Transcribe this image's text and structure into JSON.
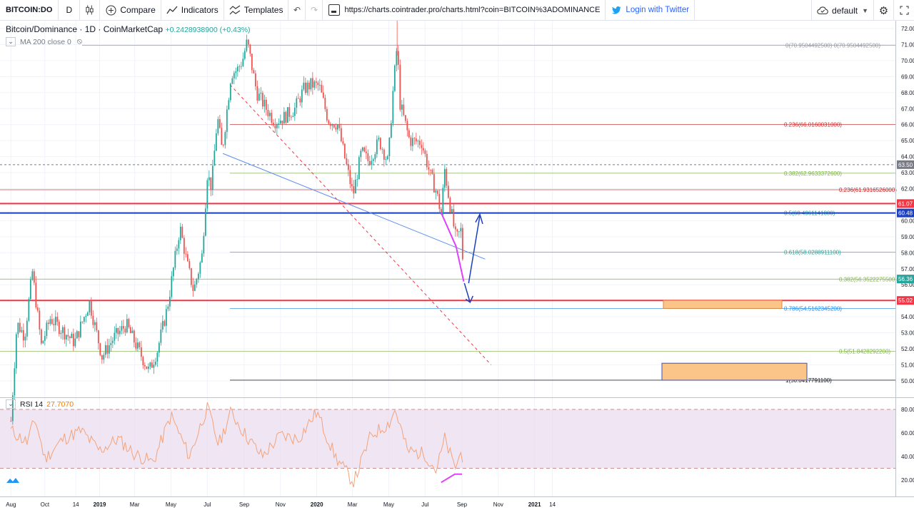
{
  "toolbar": {
    "symbol": "BITCOIN:DO",
    "interval": "D",
    "compare_label": "Compare",
    "indicators_label": "Indicators",
    "templates_label": "Templates",
    "url": "https://charts.cointrader.pro/charts.html?coin=BITCOIN%3ADOMINANCE",
    "twitter_label": "Login with Twitter",
    "layout_label": "default"
  },
  "legend": {
    "title": "Bitcoin/Dominance · 1D · CoinMarketCap",
    "change": "+0.2428938900 (+0.43%)",
    "ma_label": "MA 200 close 0",
    "rsi_label": "RSI 14",
    "rsi_value": "27.7070"
  },
  "colors": {
    "up": "#26a69a",
    "down": "#ef5350",
    "rsi_line": "#f4a37a",
    "rsi_band": "#e9dcef",
    "fib_red": "#c62828",
    "fib_green": "#7cb342",
    "fib_teal": "#26a69a",
    "fib_blue": "#1e88e5",
    "support": "#f23645",
    "resistance": "#1a3fbf",
    "target_box": "#fbc58a"
  },
  "chart_data": [
    {
      "type": "candlestick",
      "title": "Bitcoin/Dominance",
      "interval": "1D",
      "source": "CoinMarketCap",
      "x_tick_labels": [
        "Aug",
        "Oct",
        "14",
        "2019",
        "Mar",
        "May",
        "Jul",
        "Sep",
        "Nov",
        "2020",
        "Mar",
        "May",
        "Jul",
        "Sep",
        "Nov",
        "2021",
        "14"
      ],
      "y_tick_labels": [
        "50.00",
        "51.00",
        "52.00",
        "53.00",
        "54.00",
        "55.00",
        "56.00",
        "57.00",
        "58.00",
        "59.00",
        "60.00",
        "61.00",
        "62.00",
        "63.00",
        "64.00",
        "65.00",
        "66.00",
        "67.00",
        "68.00",
        "69.00",
        "70.00",
        "71.00",
        "72.00"
      ],
      "ylim": [
        49.4,
        72.2
      ],
      "price_path": [
        [
          "2018-08-05",
          47.5
        ],
        [
          "2018-08-15",
          53.6
        ],
        [
          "2018-08-28",
          52.8
        ],
        [
          "2018-09-10",
          56.8
        ],
        [
          "2018-09-25",
          52.2
        ],
        [
          "2018-10-10",
          53.9
        ],
        [
          "2018-11-01",
          53.1
        ],
        [
          "2018-11-20",
          52.4
        ],
        [
          "2018-12-15",
          54.9
        ],
        [
          "2019-01-05",
          51.5
        ],
        [
          "2019-01-25",
          52.7
        ],
        [
          "2019-02-15",
          53.5
        ],
        [
          "2019-03-05",
          52.1
        ],
        [
          "2019-03-25",
          50.6
        ],
        [
          "2019-04-08",
          51.9
        ],
        [
          "2019-04-25",
          54.6
        ],
        [
          "2019-05-16",
          59.6
        ],
        [
          "2019-05-28",
          57.3
        ],
        [
          "2019-06-08",
          55.6
        ],
        [
          "2019-06-22",
          57.8
        ],
        [
          "2019-07-01",
          62.9
        ],
        [
          "2019-07-08",
          62.1
        ],
        [
          "2019-07-18",
          66.5
        ],
        [
          "2019-07-26",
          64.3
        ],
        [
          "2019-08-10",
          69.2
        ],
        [
          "2019-08-20",
          69.4
        ],
        [
          "2019-08-29",
          70.0
        ],
        [
          "2019-09-06",
          71.2
        ],
        [
          "2019-09-22",
          68.0
        ],
        [
          "2019-10-08",
          67.0
        ],
        [
          "2019-10-22",
          66.2
        ],
        [
          "2019-11-05",
          66.4
        ],
        [
          "2019-11-25",
          67.0
        ],
        [
          "2019-12-10",
          68.2
        ],
        [
          "2019-12-22",
          68.5
        ],
        [
          "2020-01-05",
          68.4
        ],
        [
          "2020-01-20",
          66.3
        ],
        [
          "2020-02-05",
          66.0
        ],
        [
          "2020-02-20",
          63.4
        ],
        [
          "2020-03-02",
          61.6
        ],
        [
          "2020-03-16",
          64.3
        ],
        [
          "2020-03-28",
          63.7
        ],
        [
          "2020-04-15",
          65.0
        ],
        [
          "2020-04-30",
          63.6
        ],
        [
          "2020-05-07",
          67.6
        ],
        [
          "2020-05-15",
          71.0
        ],
        [
          "2020-05-20",
          67.3
        ],
        [
          "2020-06-05",
          65.0
        ],
        [
          "2020-06-25",
          64.9
        ],
        [
          "2020-07-10",
          62.8
        ],
        [
          "2020-07-20",
          61.8
        ],
        [
          "2020-07-28",
          60.4
        ],
        [
          "2020-08-03",
          63.2
        ],
        [
          "2020-08-10",
          61.4
        ],
        [
          "2020-08-22",
          58.8
        ],
        [
          "2020-08-30",
          59.4
        ],
        [
          "2020-09-05",
          56.1
        ]
      ],
      "last_value": 56.36,
      "price_labels": [
        "63.50",
        "61.07",
        "60.48",
        "56.36",
        "55.02",
        "51.00"
      ],
      "fibonacci_levels": [
        {
          "label": "0(70.9504492500)",
          "value": 70.95044925
        },
        {
          "label": "0.236(66.0160031000)",
          "value": 66.0160031
        },
        {
          "label": "0.382(62.9633372600)",
          "value": 62.96333726
        },
        {
          "label": "0.618(58.0288911100)",
          "value": 58.02889111
        },
        {
          "label": "0.786(54.5162345200)",
          "value": 54.51623452
        },
        {
          "label": "1(50.0417791100)",
          "value": 50.04177911
        },
        {
          "label": "0.236(61.9316526000)",
          "value": 61.9316526
        },
        {
          "label": "0.5(60.4961141800)",
          "value": 60.49611418
        },
        {
          "label": "0.382(56.3522275500)",
          "value": 56.35222755
        },
        {
          "label": "0.5(51.8428292200)",
          "value": 51.84282922
        }
      ],
      "horizontal_lines": [
        61.07,
        60.48,
        55.02,
        63.5
      ],
      "target_zones": [
        [
          54.52,
          55.02
        ],
        [
          50.04,
          51.1
        ]
      ],
      "trendlines": [
        {
          "from": [
            "2019-07-27",
            64.2
          ],
          "to": [
            "2020-10-10",
            57.6
          ]
        },
        {
          "from": [
            "2019-08-08",
            68.5
          ],
          "to": [
            "2020-10-20",
            51.0
          ],
          "style": "dashed"
        }
      ]
    },
    {
      "type": "line",
      "title": "RSI 14",
      "last_value": 27.707,
      "y_tick_labels": [
        "20.00",
        "40.00",
        "60.00",
        "80.00"
      ],
      "ylim": [
        12,
        86
      ],
      "upper_band": 80,
      "lower_band": 30,
      "rsi_path": [
        [
          "2018-08-05",
          62
        ],
        [
          "2018-09-01",
          52
        ],
        [
          "2018-09-15",
          72
        ],
        [
          "2018-10-01",
          38
        ],
        [
          "2018-11-01",
          55
        ],
        [
          "2018-12-01",
          62
        ],
        [
          "2019-01-01",
          45
        ],
        [
          "2019-02-01",
          55
        ],
        [
          "2019-03-01",
          42
        ],
        [
          "2019-04-01",
          35
        ],
        [
          "2019-05-01",
          75
        ],
        [
          "2019-06-01",
          40
        ],
        [
          "2019-07-01",
          82
        ],
        [
          "2019-07-20",
          50
        ],
        [
          "2019-08-10",
          78
        ],
        [
          "2019-09-01",
          60
        ],
        [
          "2019-10-01",
          40
        ],
        [
          "2019-11-01",
          58
        ],
        [
          "2019-12-01",
          55
        ],
        [
          "2020-01-01",
          78
        ],
        [
          "2020-02-01",
          40
        ],
        [
          "2020-03-03",
          18
        ],
        [
          "2020-04-01",
          58
        ],
        [
          "2020-05-01",
          68
        ],
        [
          "2020-05-12",
          80
        ],
        [
          "2020-06-01",
          45
        ],
        [
          "2020-07-01",
          42
        ],
        [
          "2020-07-20",
          28
        ],
        [
          "2020-08-03",
          55
        ],
        [
          "2020-08-20",
          30
        ],
        [
          "2020-09-01",
          45
        ],
        [
          "2020-09-05",
          27.7
        ]
      ]
    }
  ]
}
